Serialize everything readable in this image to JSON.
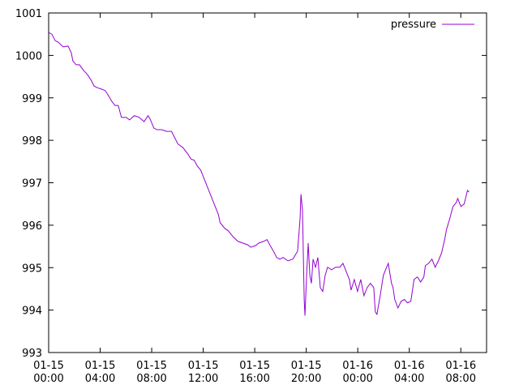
{
  "chart_data": {
    "type": "line",
    "xlim": [
      0,
      34
    ],
    "ylim": [
      993,
      1001
    ],
    "yticks": [
      993,
      994,
      995,
      996,
      997,
      998,
      999,
      1000,
      1001
    ],
    "xticks": [
      {
        "value": 0,
        "label": "01-15\n00:00"
      },
      {
        "value": 4,
        "label": "01-15\n04:00"
      },
      {
        "value": 8,
        "label": "01-15\n08:00"
      },
      {
        "value": 12,
        "label": "01-15\n12:00"
      },
      {
        "value": 16,
        "label": "01-15\n16:00"
      },
      {
        "value": 20,
        "label": "01-15\n20:00"
      },
      {
        "value": 24,
        "label": "01-16\n00:00"
      },
      {
        "value": 28,
        "label": "01-16\n04:00"
      },
      {
        "value": 32,
        "label": "01-16\n08:00"
      }
    ],
    "legend": "top-right",
    "grid": false,
    "x": [
      0,
      0.25,
      0.5,
      0.75,
      1.13,
      1.51,
      1.76,
      1.88,
      2.13,
      2.39,
      2.7,
      3.01,
      3.33,
      3.52,
      3.77,
      4.08,
      4.39,
      4.65,
      4.9,
      5.15,
      5.4,
      5.65,
      6.03,
      6.28,
      6.65,
      7.03,
      7.41,
      7.72,
      7.91,
      8.16,
      8.41,
      8.79,
      9.16,
      9.54,
      9.79,
      10.04,
      10.42,
      10.8,
      11.05,
      11.3,
      11.55,
      11.8,
      12.05,
      12.3,
      12.55,
      12.93,
      13.18,
      13.31,
      13.69,
      13.94,
      14.31,
      14.69,
      15.07,
      15.44,
      15.69,
      16.07,
      16.32,
      16.7,
      16.95,
      17.2,
      17.45,
      17.7,
      17.95,
      18.2,
      18.58,
      18.96,
      19.33,
      19.52,
      19.59,
      19.71,
      19.84,
      19.9,
      20.03,
      20.15,
      20.28,
      20.4,
      20.53,
      20.72,
      20.9,
      21.09,
      21.28,
      21.47,
      21.66,
      21.97,
      22.28,
      22.6,
      22.85,
      23.1,
      23.35,
      23.48,
      23.73,
      23.98,
      24.23,
      24.48,
      24.73,
      24.98,
      25.24,
      25.36,
      25.49,
      25.74,
      25.99,
      26.24,
      26.37,
      26.62,
      26.74,
      26.87,
      27.12,
      27.37,
      27.62,
      27.87,
      28.12,
      28.37,
      28.63,
      28.88,
      29.13,
      29.25,
      29.5,
      29.76,
      30.01,
      30.26,
      30.51,
      30.76,
      30.89,
      31.14,
      31.39,
      31.64,
      31.76,
      32.01,
      32.26,
      32.52,
      32.64
    ],
    "series": [
      {
        "name": "pressure",
        "color": "#9400d3",
        "values": [
          1000.54,
          1000.5,
          1000.35,
          1000.31,
          1000.2,
          1000.22,
          1000.06,
          999.87,
          999.78,
          999.78,
          999.65,
          999.55,
          999.4,
          999.28,
          999.24,
          999.21,
          999.17,
          999.05,
          998.92,
          998.82,
          998.82,
          998.54,
          998.54,
          998.48,
          998.58,
          998.54,
          998.44,
          998.58,
          998.48,
          998.29,
          998.25,
          998.25,
          998.21,
          998.21,
          998.06,
          997.91,
          997.83,
          997.68,
          997.56,
          997.53,
          997.39,
          997.3,
          997.11,
          996.92,
          996.73,
          996.44,
          996.25,
          996.06,
          995.92,
          995.87,
          995.73,
          995.62,
          995.58,
          995.54,
          995.48,
          995.52,
          995.58,
          995.62,
          995.66,
          995.52,
          995.39,
          995.24,
          995.2,
          995.24,
          995.16,
          995.2,
          995.39,
          996.15,
          996.73,
          996.34,
          994.25,
          993.87,
          994.82,
          995.58,
          994.82,
          994.63,
          995.2,
          995.01,
          995.24,
          994.53,
          994.44,
          994.82,
          995.01,
          994.95,
          995.01,
          995.01,
          995.1,
          994.91,
          994.72,
          994.47,
          994.72,
          994.44,
          994.72,
          994.34,
          994.53,
          994.63,
          994.53,
          993.96,
          993.9,
          994.34,
          994.82,
          995.01,
          995.1,
          994.63,
          994.53,
          994.25,
          994.05,
          994.21,
          994.25,
          994.17,
          994.21,
          994.72,
          994.78,
          994.66,
          994.78,
          995.05,
          995.1,
          995.2,
          995.01,
          995.16,
          995.35,
          995.68,
          995.9,
          996.15,
          996.44,
          996.53,
          996.63,
          996.44,
          996.5,
          996.82,
          996.78
        ]
      }
    ]
  }
}
